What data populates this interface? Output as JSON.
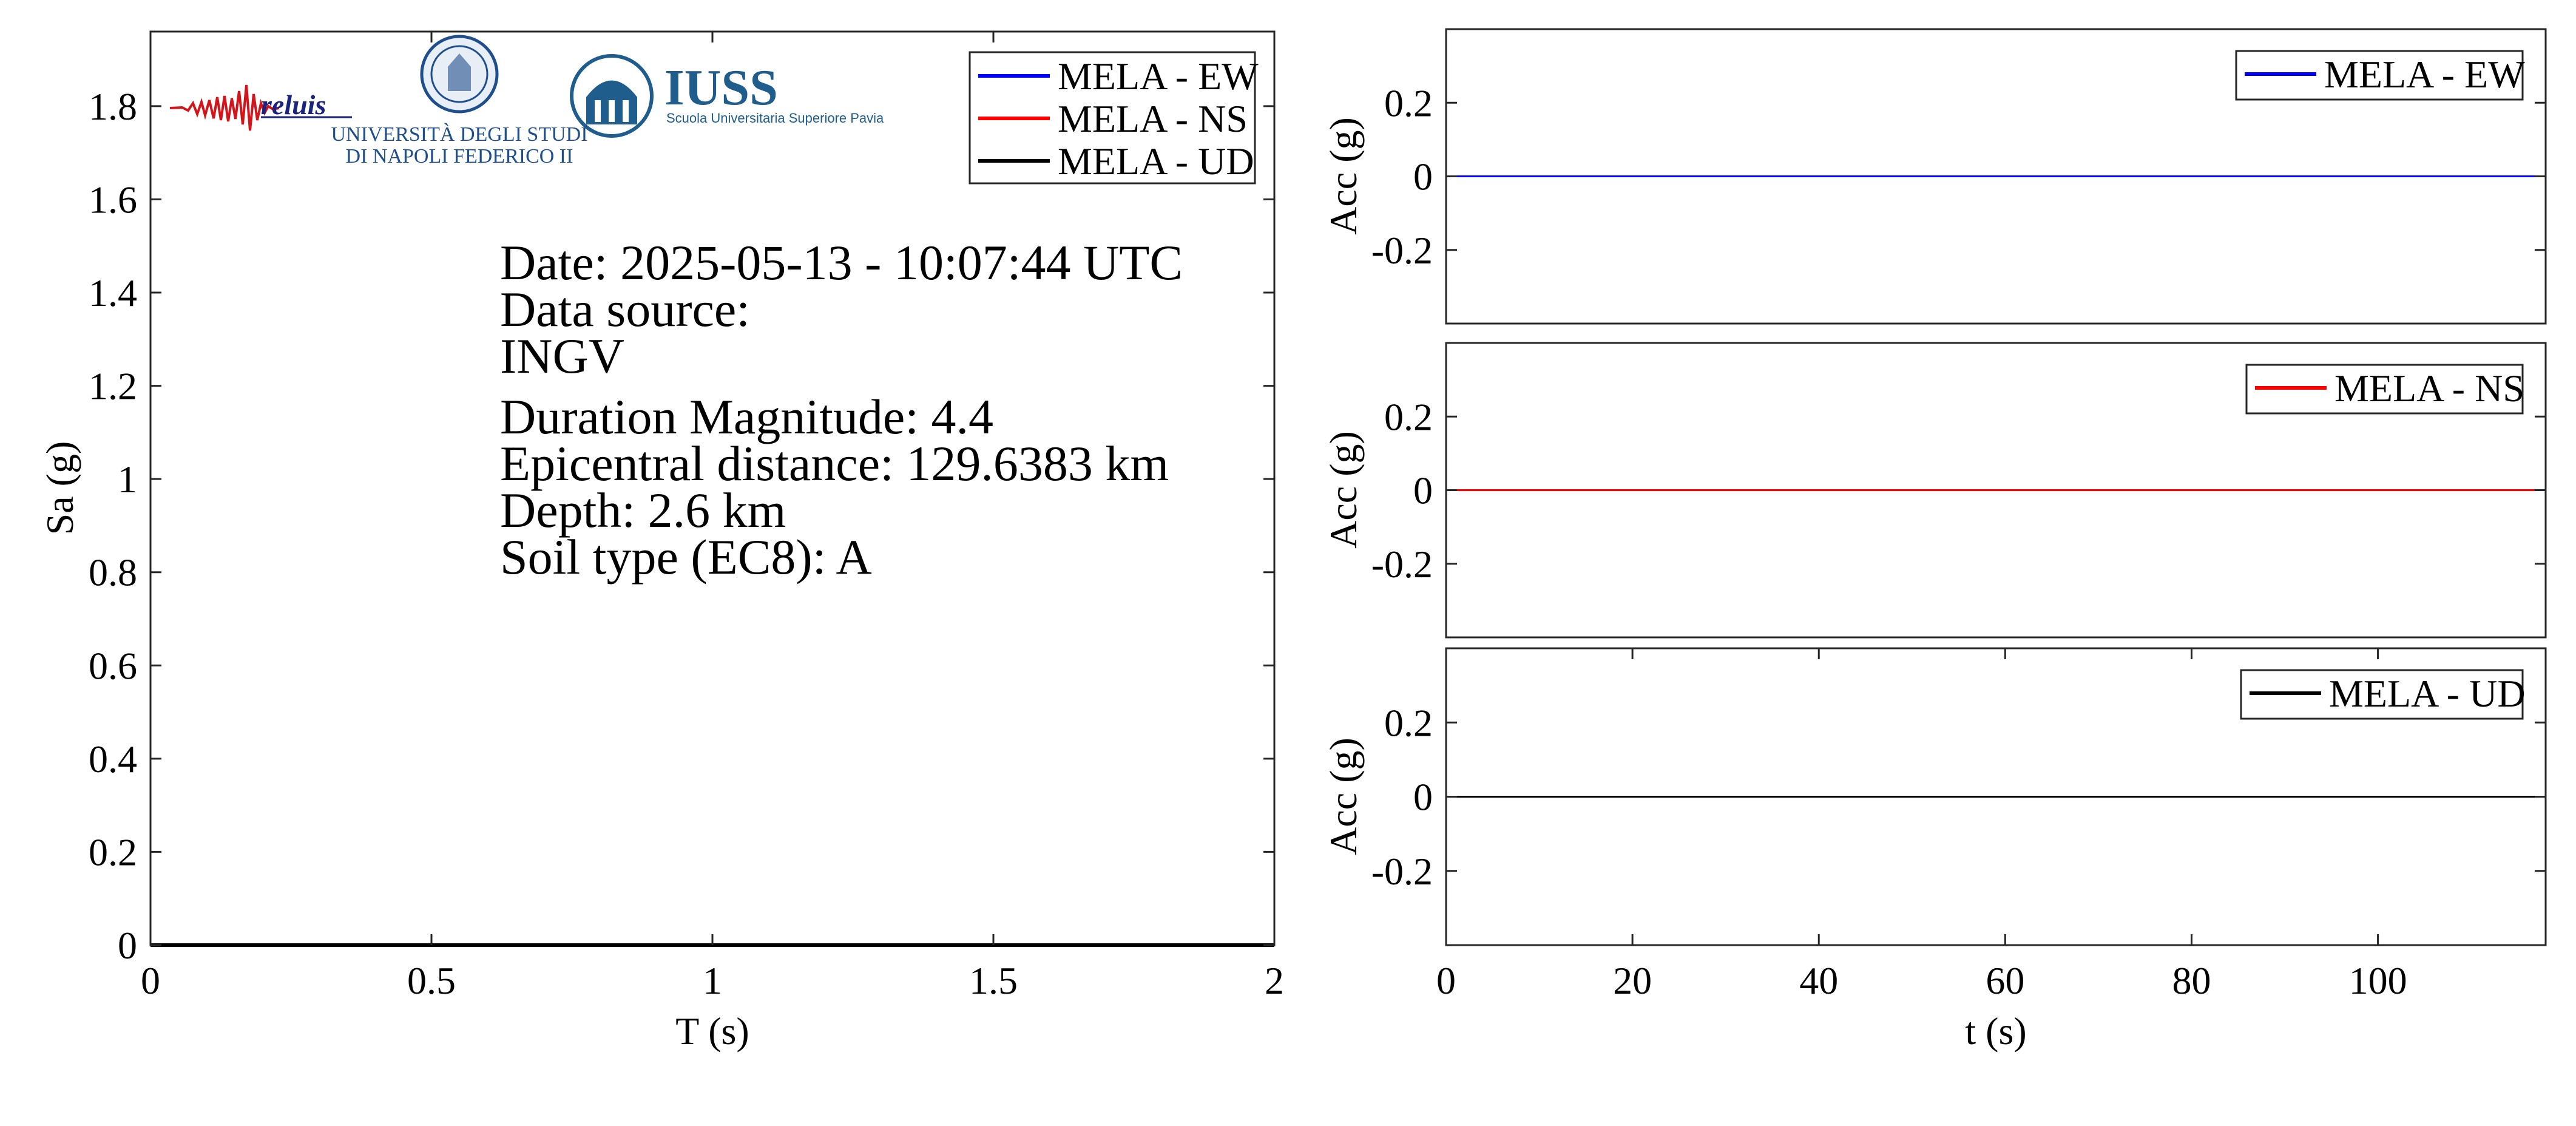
{
  "logos": {
    "reluis": "reluis",
    "unina_line1": "UNIVERSITÀ DEGLI STUDI",
    "unina_line2": "DI NAPOLI FEDERICO II",
    "iuss_title": "IUSS",
    "iuss_subtitle": "Scuola Universitaria Superiore Pavia"
  },
  "info": {
    "date": "Date: 2025-05-13 - 10:07:44 UTC",
    "data_source_label": "Data source:",
    "data_source": "INGV",
    "magnitude": "Duration Magnitude: 4.4",
    "distance": "Epicentral distance: 129.6383 km",
    "depth": "Depth: 2.6 km",
    "soil": "Soil type (EC8): A"
  },
  "colors": {
    "EW": "#0000ff",
    "NS": "#ff0000",
    "UD": "#000000"
  },
  "chart_data": [
    {
      "type": "line",
      "xlabel": "T (s)",
      "ylabel": "Sa (g)",
      "xlim": [
        0,
        2
      ],
      "ylim": [
        0,
        1.96
      ],
      "xticks": [
        0,
        0.5,
        1,
        1.5,
        2
      ],
      "xtick_labels": [
        "0",
        "0.5",
        "1",
        "1.5",
        "2"
      ],
      "yticks": [
        0,
        0.2,
        0.4,
        0.6,
        0.8,
        1.0,
        1.2,
        1.4,
        1.6,
        1.8
      ],
      "ytick_labels": [
        "0",
        "0.2",
        "0.4",
        "0.6",
        "0.8",
        "1",
        "1.2",
        "1.4",
        "1.6",
        "1.8"
      ],
      "legend_position": "top-right",
      "series": [
        {
          "name": "MELA - EW",
          "color": "#0000ff",
          "x": [
            0,
            2
          ],
          "y": [
            0,
            0
          ]
        },
        {
          "name": "MELA - NS",
          "color": "#ff0000",
          "x": [
            0,
            2
          ],
          "y": [
            0,
            0
          ]
        },
        {
          "name": "MELA - UD",
          "color": "#000000",
          "x": [
            0,
            2
          ],
          "y": [
            0,
            0
          ]
        }
      ]
    },
    {
      "type": "line",
      "ylabel": "Acc (g)",
      "xlim": [
        0,
        118
      ],
      "ylim": [
        -0.4,
        0.4
      ],
      "yticks": [
        -0.2,
        0,
        0.2
      ],
      "ytick_labels": [
        "-0.2",
        "0",
        "0.2"
      ],
      "legend_position": "top-right",
      "series": [
        {
          "name": "MELA - EW",
          "color": "#0000ff",
          "x": [
            0,
            118
          ],
          "y": [
            0,
            0
          ]
        }
      ]
    },
    {
      "type": "line",
      "ylabel": "Acc (g)",
      "xlim": [
        0,
        118
      ],
      "ylim": [
        -0.4,
        0.4
      ],
      "yticks": [
        -0.2,
        0,
        0.2
      ],
      "ytick_labels": [
        "-0.2",
        "0",
        "0.2"
      ],
      "legend_position": "top-right",
      "series": [
        {
          "name": "MELA - NS",
          "color": "#ff0000",
          "x": [
            0,
            118
          ],
          "y": [
            0,
            0
          ]
        }
      ]
    },
    {
      "type": "line",
      "xlabel": "t (s)",
      "ylabel": "Acc (g)",
      "xlim": [
        0,
        118
      ],
      "ylim": [
        -0.4,
        0.4
      ],
      "xticks": [
        0,
        20,
        40,
        60,
        80,
        100
      ],
      "xtick_labels": [
        "0",
        "20",
        "40",
        "60",
        "80",
        "100"
      ],
      "yticks": [
        -0.2,
        0,
        0.2
      ],
      "ytick_labels": [
        "-0.2",
        "0",
        "0.2"
      ],
      "legend_position": "top-right",
      "series": [
        {
          "name": "MELA - UD",
          "color": "#000000",
          "x": [
            0,
            118
          ],
          "y": [
            0,
            0
          ]
        }
      ]
    }
  ]
}
